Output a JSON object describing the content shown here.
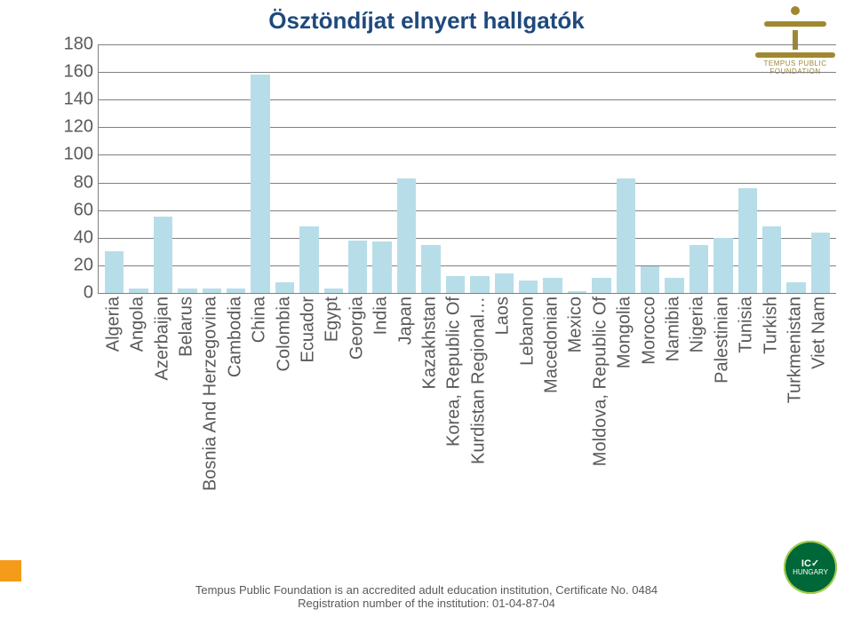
{
  "title": "Ösztöndíjat elnyert hallgatók",
  "title_color": "#1f497d",
  "title_fontsize": 26,
  "chart": {
    "type": "bar",
    "ylim": [
      0,
      180
    ],
    "ytick_step": 20,
    "yticks": [
      0,
      20,
      40,
      60,
      80,
      100,
      120,
      140,
      160,
      180
    ],
    "grid_color": "#808080",
    "axis_color": "#808080",
    "bar_color": "#b7dee8",
    "background_color": "#ffffff",
    "label_fontsize": 20,
    "label_color": "#595959",
    "categories": [
      "Algeria",
      "Angola",
      "Azerbaijan",
      "Belarus",
      "Bosnia And Herzegovina",
      "Cambodia",
      "China",
      "Colombia",
      "Ecuador",
      "Egypt",
      "Georgia",
      "India",
      "Japan",
      "Kazakhstan",
      "Korea, Republic Of",
      "Kurdistan Regional…",
      "Laos",
      "Lebanon",
      "Macedonian",
      "Mexico",
      "Moldova, Republic Of",
      "Mongolia",
      "Morocco",
      "Namibia",
      "Nigeria",
      "Palestinian",
      "Tunisia",
      "Turkish",
      "Turkmenistan",
      "Viet Nam"
    ],
    "values": [
      30,
      3,
      55,
      3,
      3,
      3,
      158,
      8,
      48,
      3,
      38,
      37,
      83,
      35,
      12,
      12,
      14,
      9,
      11,
      1,
      11,
      83,
      19,
      11,
      35,
      40,
      76,
      48,
      8,
      44
    ]
  },
  "logo_text": "TEMPUS PUBLIC FOUNDATION",
  "footer_line1": "Tempus Public Foundation is an accredited adult education institution, Certificate No. 0484",
  "footer_line2": "Registration number of the institution: 01-04-87-04",
  "badge": {
    "line1": "IC✓",
    "line2": "HUNGARY"
  }
}
